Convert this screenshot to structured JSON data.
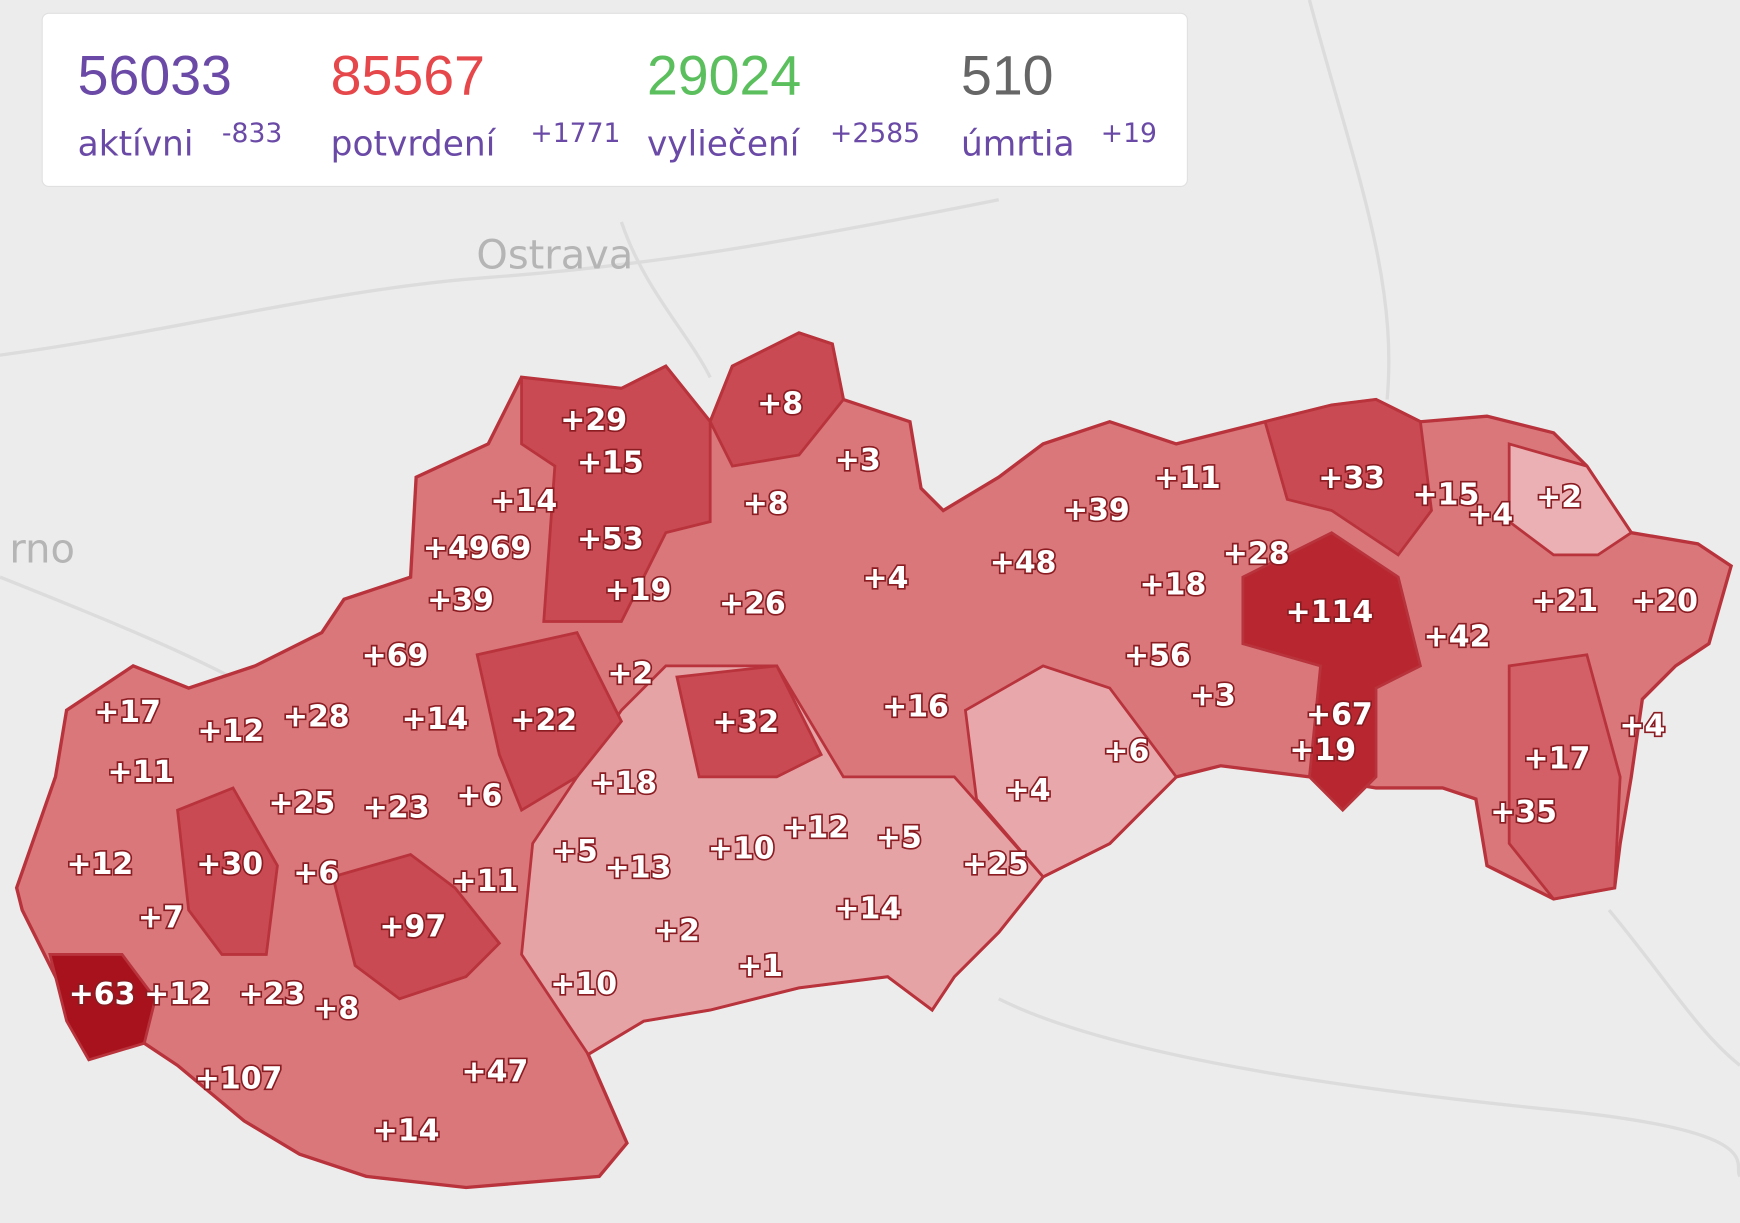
{
  "stats": [
    {
      "value": "56033",
      "label": "aktívni",
      "change": "-833"
    },
    {
      "value": "85567",
      "label": "potvrdení",
      "change": "+1771"
    },
    {
      "value": "29024",
      "label": "vyliečení",
      "change": "+2585"
    },
    {
      "value": "510",
      "label": "úmrtia",
      "change": "+19"
    }
  ],
  "places": [
    "Ostrava",
    "rno"
  ],
  "districts": [
    "+29",
    "+8",
    "+15",
    "+3",
    "+14",
    "+8",
    "+53",
    "+4969",
    "+19",
    "+26",
    "+4",
    "+39",
    "+48",
    "+39",
    "+11",
    "+33",
    "+15",
    "+4",
    "+2",
    "+28",
    "+18",
    "+114",
    "+21",
    "+20",
    "+42",
    "+69",
    "+2",
    "+32",
    "+16",
    "+56",
    "+3",
    "+67",
    "+19",
    "+4",
    "+17",
    "+12",
    "+28",
    "+14",
    "+22",
    "+6",
    "+17",
    "+11",
    "+25",
    "+23",
    "+6",
    "+18",
    "+4",
    "+35",
    "+12",
    "+30",
    "+6",
    "+11",
    "+5",
    "+13",
    "+10",
    "+12",
    "+5",
    "+25",
    "+7",
    "+97",
    "+14",
    "+2",
    "+1",
    "+63",
    "+12",
    "+23",
    "+8",
    "+10",
    "+107",
    "+47",
    "+14"
  ]
}
